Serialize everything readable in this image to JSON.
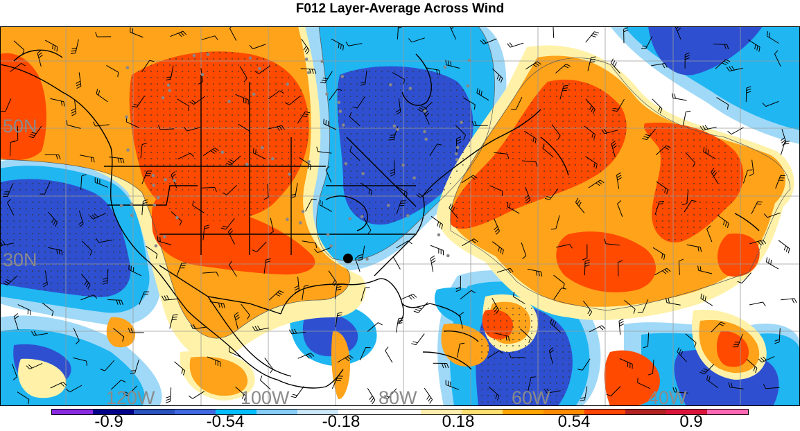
{
  "title": "F012 Layer-Average Across Wind",
  "grid_labels": {
    "latitudes": [
      "50N",
      "30N"
    ],
    "longitudes": [
      "120W",
      "100W",
      "80W",
      "60W",
      "40W"
    ]
  },
  "colorbar": {
    "colors": [
      "#8a2be2",
      "#00008b",
      "#2a52be",
      "#4169e1",
      "#00bfff",
      "#87cefa",
      "#cde8f8",
      "#ffffff",
      "#ffffff",
      "#fff0b0",
      "#ffe070",
      "#ffa500",
      "#ff8c00",
      "#ff4500",
      "#b22222",
      "#dc143c",
      "#ff69b4"
    ],
    "tick_labels": [
      "-0.9",
      "-0.54",
      "-0.18",
      "0.18",
      "0.54",
      "0.9"
    ]
  },
  "map_legend_hint": {
    "positive_color": "#ff5a00",
    "negative_color": "#2c4fd6",
    "marker_color": "#000000"
  }
}
